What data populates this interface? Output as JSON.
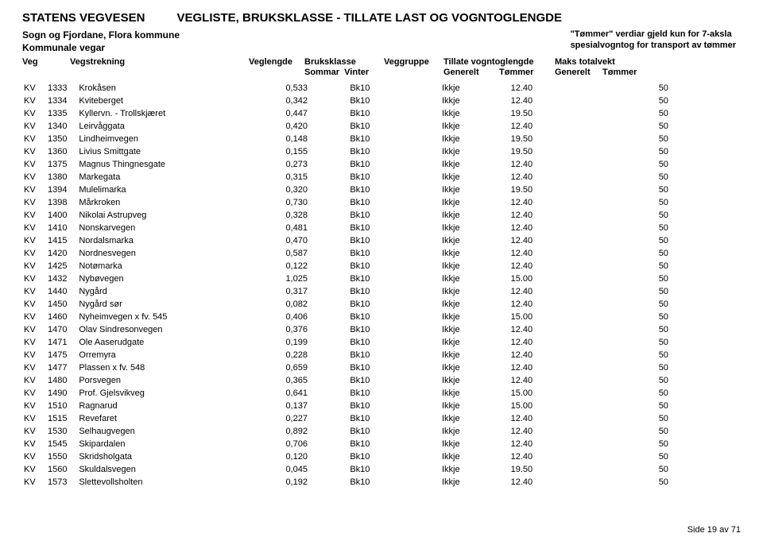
{
  "header": {
    "org": "STATENS VEGVESEN",
    "doc_title": "VEGLISTE, BRUKSKLASSE - TILLATE LAST OG VOGNTOGLENGDE",
    "region": "Sogn og Fjordane, Flora kommune",
    "road_type": "Kommunale vegar",
    "tommer_note_l1": "\"Tømmer\" verdiar gjeld kun for 7-aksla",
    "tommer_note_l2": "spesialvogntog for transport av tømmer"
  },
  "columns": {
    "veg": "Veg",
    "vegstrekning": "Vegstrekning",
    "veglengde": "Veglengde",
    "bruksklasse": "Bruksklasse",
    "bruks_l2a": "Sommar",
    "bruks_l2b": "Vinter",
    "veggruppe": "Veggruppe",
    "tillate": "Tillate vogntoglengde",
    "tillate_a": "Generelt",
    "tillate_b": "Tømmer",
    "maks": "Maks totalvekt",
    "maks_a": "Generelt",
    "maks_b": "Tømmer"
  },
  "prefix": "KV",
  "rows": [
    {
      "n": "1333",
      "name": "Krokåsen",
      "len": "0,533",
      "bk": "Bk10",
      "grp": "Ikkje",
      "gen": "12.40",
      "tom": "",
      "mg": "50",
      "mt": ""
    },
    {
      "n": "1334",
      "name": "Kviteberget",
      "len": "0,342",
      "bk": "Bk10",
      "grp": "Ikkje",
      "gen": "12.40",
      "tom": "",
      "mg": "50",
      "mt": ""
    },
    {
      "n": "1335",
      "name": "Kyllervn. - Trollskjæret",
      "len": "0,447",
      "bk": "Bk10",
      "grp": "Ikkje",
      "gen": "19.50",
      "tom": "",
      "mg": "50",
      "mt": ""
    },
    {
      "n": "1340",
      "name": "Leirvåggata",
      "len": "0,420",
      "bk": "Bk10",
      "grp": "Ikkje",
      "gen": "12.40",
      "tom": "",
      "mg": "50",
      "mt": ""
    },
    {
      "n": "1350",
      "name": "Lindheimvegen",
      "len": "0,148",
      "bk": "Bk10",
      "grp": "Ikkje",
      "gen": "19.50",
      "tom": "",
      "mg": "50",
      "mt": ""
    },
    {
      "n": "1360",
      "name": "Livius Smittgate",
      "len": "0,155",
      "bk": "Bk10",
      "grp": "Ikkje",
      "gen": "19.50",
      "tom": "",
      "mg": "50",
      "mt": ""
    },
    {
      "n": "1375",
      "name": "Magnus Thingnesgate",
      "len": "0,273",
      "bk": "Bk10",
      "grp": "Ikkje",
      "gen": "12.40",
      "tom": "",
      "mg": "50",
      "mt": ""
    },
    {
      "n": "1380",
      "name": "Markegata",
      "len": "0,315",
      "bk": "Bk10",
      "grp": "Ikkje",
      "gen": "12.40",
      "tom": "",
      "mg": "50",
      "mt": ""
    },
    {
      "n": "1394",
      "name": "Mulelimarka",
      "len": "0,320",
      "bk": "Bk10",
      "grp": "Ikkje",
      "gen": "19.50",
      "tom": "",
      "mg": "50",
      "mt": ""
    },
    {
      "n": "1398",
      "name": "Mårkroken",
      "len": "0,730",
      "bk": "Bk10",
      "grp": "Ikkje",
      "gen": "12.40",
      "tom": "",
      "mg": "50",
      "mt": ""
    },
    {
      "n": "1400",
      "name": "Nikolai Astrupveg",
      "len": "0,328",
      "bk": "Bk10",
      "grp": "Ikkje",
      "gen": "12.40",
      "tom": "",
      "mg": "50",
      "mt": ""
    },
    {
      "n": "1410",
      "name": "Nonskarvegen",
      "len": "0,481",
      "bk": "Bk10",
      "grp": "Ikkje",
      "gen": "12.40",
      "tom": "",
      "mg": "50",
      "mt": ""
    },
    {
      "n": "1415",
      "name": "Nordalsmarka",
      "len": "0,470",
      "bk": "Bk10",
      "grp": "Ikkje",
      "gen": "12.40",
      "tom": "",
      "mg": "50",
      "mt": ""
    },
    {
      "n": "1420",
      "name": "Nordnesvegen",
      "len": "0,587",
      "bk": "Bk10",
      "grp": "Ikkje",
      "gen": "12.40",
      "tom": "",
      "mg": "50",
      "mt": ""
    },
    {
      "n": "1425",
      "name": "Notømarka",
      "len": "0,122",
      "bk": "Bk10",
      "grp": "Ikkje",
      "gen": "12.40",
      "tom": "",
      "mg": "50",
      "mt": ""
    },
    {
      "n": "1432",
      "name": "Nybøvegen",
      "len": "1,025",
      "bk": "Bk10",
      "grp": "Ikkje",
      "gen": "15.00",
      "tom": "",
      "mg": "50",
      "mt": ""
    },
    {
      "n": "1440",
      "name": "Nygård",
      "len": "0,317",
      "bk": "Bk10",
      "grp": "Ikkje",
      "gen": "12.40",
      "tom": "",
      "mg": "50",
      "mt": ""
    },
    {
      "n": "1450",
      "name": "Nygård sør",
      "len": "0,082",
      "bk": "Bk10",
      "grp": "Ikkje",
      "gen": "12.40",
      "tom": "",
      "mg": "50",
      "mt": ""
    },
    {
      "n": "1460",
      "name": "Nyheimvegen x fv. 545",
      "len": "0,406",
      "bk": "Bk10",
      "grp": "Ikkje",
      "gen": "15.00",
      "tom": "",
      "mg": "50",
      "mt": ""
    },
    {
      "n": "1470",
      "name": "Olav Sindresonvegen",
      "len": "0,376",
      "bk": "Bk10",
      "grp": "Ikkje",
      "gen": "12.40",
      "tom": "",
      "mg": "50",
      "mt": ""
    },
    {
      "n": "1471",
      "name": "Ole Aaserudgate",
      "len": "0,199",
      "bk": "Bk10",
      "grp": "Ikkje",
      "gen": "12.40",
      "tom": "",
      "mg": "50",
      "mt": ""
    },
    {
      "n": "1475",
      "name": "Orremyra",
      "len": "0,228",
      "bk": "Bk10",
      "grp": "Ikkje",
      "gen": "12.40",
      "tom": "",
      "mg": "50",
      "mt": ""
    },
    {
      "n": "1477",
      "name": "Plassen x fv. 548",
      "len": "0,659",
      "bk": "Bk10",
      "grp": "Ikkje",
      "gen": "12.40",
      "tom": "",
      "mg": "50",
      "mt": ""
    },
    {
      "n": "1480",
      "name": "Porsvegen",
      "len": "0,365",
      "bk": "Bk10",
      "grp": "Ikkje",
      "gen": "12.40",
      "tom": "",
      "mg": "50",
      "mt": ""
    },
    {
      "n": "1490",
      "name": "Prof. Gjelsvikveg",
      "len": "0,641",
      "bk": "Bk10",
      "grp": "Ikkje",
      "gen": "15.00",
      "tom": "",
      "mg": "50",
      "mt": ""
    },
    {
      "n": "1510",
      "name": "Ragnarud",
      "len": "0,137",
      "bk": "Bk10",
      "grp": "Ikkje",
      "gen": "15.00",
      "tom": "",
      "mg": "50",
      "mt": ""
    },
    {
      "n": "1515",
      "name": "Revefaret",
      "len": "0,227",
      "bk": "Bk10",
      "grp": "Ikkje",
      "gen": "12.40",
      "tom": "",
      "mg": "50",
      "mt": ""
    },
    {
      "n": "1530",
      "name": "Selhaugvegen",
      "len": "0,892",
      "bk": "Bk10",
      "grp": "Ikkje",
      "gen": "12.40",
      "tom": "",
      "mg": "50",
      "mt": ""
    },
    {
      "n": "1545",
      "name": "Skipardalen",
      "len": "0,706",
      "bk": "Bk10",
      "grp": "Ikkje",
      "gen": "12.40",
      "tom": "",
      "mg": "50",
      "mt": ""
    },
    {
      "n": "1550",
      "name": "Skridsholgata",
      "len": "0,120",
      "bk": "Bk10",
      "grp": "Ikkje",
      "gen": "12.40",
      "tom": "",
      "mg": "50",
      "mt": ""
    },
    {
      "n": "1560",
      "name": "Skuldalsvegen",
      "len": "0,045",
      "bk": "Bk10",
      "grp": "Ikkje",
      "gen": "19.50",
      "tom": "",
      "mg": "50",
      "mt": ""
    },
    {
      "n": "1573",
      "name": "Slettevollsholten",
      "len": "0,192",
      "bk": "Bk10",
      "grp": "Ikkje",
      "gen": "12.40",
      "tom": "",
      "mg": "50",
      "mt": ""
    }
  ],
  "footer": {
    "page": "Side 19 av 71"
  }
}
